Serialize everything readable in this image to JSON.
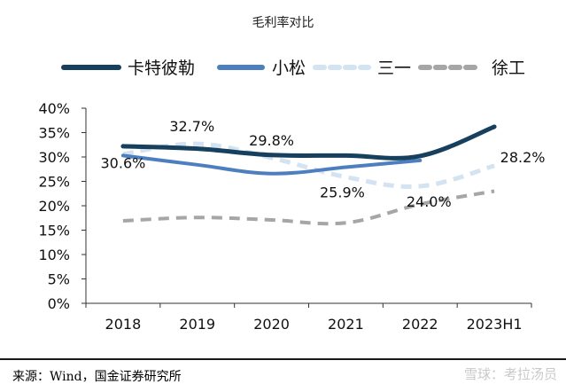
{
  "chart_data": {
    "type": "line",
    "title": "毛利率对比",
    "categories": [
      "2018",
      "2019",
      "2020",
      "2021",
      "2022",
      "2023H1"
    ],
    "ylim": [
      0,
      40
    ],
    "yticks": [
      "0%",
      "5%",
      "10%",
      "15%",
      "20%",
      "25%",
      "30%",
      "35%",
      "40%"
    ],
    "grid": false,
    "legend_position": "top",
    "series": [
      {
        "name": "卡特彼勒",
        "color": "#17405e",
        "style": "solid",
        "width": 5,
        "values": [
          32.2,
          31.7,
          30.4,
          30.3,
          30.2,
          36.2
        ]
      },
      {
        "name": "小松",
        "color": "#4d7fc0",
        "style": "solid",
        "width": 4,
        "values": [
          30.3,
          28.4,
          26.6,
          27.9,
          29.3,
          null
        ]
      },
      {
        "name": "三一",
        "color": "#d3e3f1",
        "style": "dashed",
        "width": 5,
        "values": [
          30.6,
          32.7,
          29.8,
          25.9,
          24.0,
          28.2
        ]
      },
      {
        "name": "徐工",
        "color": "#a6a6a6",
        "style": "dashed",
        "width": 4,
        "values": [
          16.9,
          17.6,
          17.1,
          16.5,
          20.3,
          23.0
        ]
      }
    ],
    "data_labels": [
      {
        "series": "三一",
        "category": "2018",
        "text": "30.6%"
      },
      {
        "series": "三一",
        "category": "2019",
        "text": "32.7%"
      },
      {
        "series": "三一",
        "category": "2020",
        "text": "29.8%"
      },
      {
        "series": "三一",
        "category": "2021",
        "text": "25.9%"
      },
      {
        "series": "三一",
        "category": "2022",
        "text": "24.0%"
      },
      {
        "series": "三一",
        "category": "2023H1",
        "text": "28.2%"
      }
    ]
  },
  "footer": {
    "source": "来源：Wind，国金证券研究所",
    "watermark": "雪球：考拉汤员"
  }
}
